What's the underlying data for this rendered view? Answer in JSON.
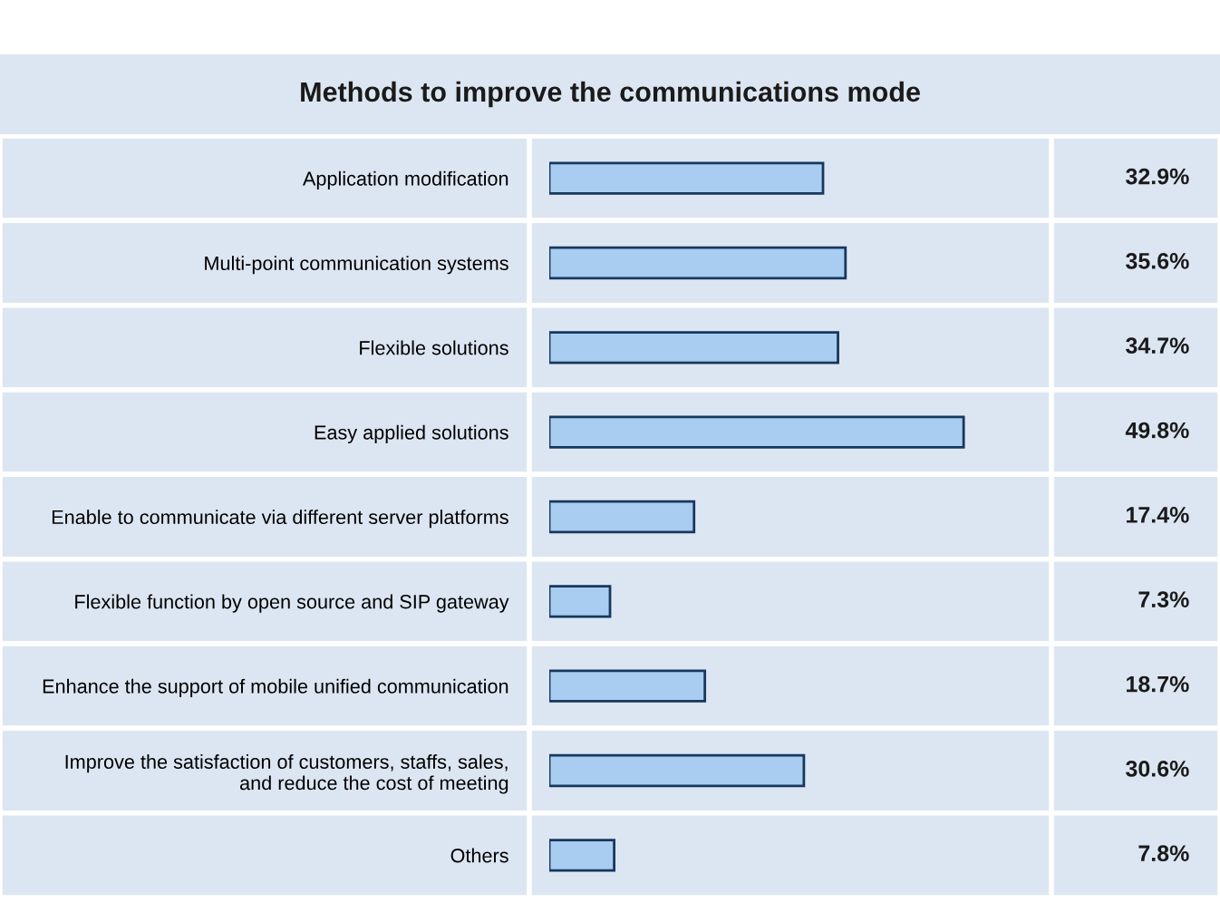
{
  "chart_data": {
    "type": "bar",
    "orientation": "horizontal",
    "title": "Methods to improve the communications mode",
    "categories": [
      "Application modification",
      "Multi-point communication systems",
      "Flexible solutions",
      "Easy applied solutions",
      "Enable to communicate via different server platforms",
      "Flexible function by open source and SIP gateway",
      "Enhance the support of mobile unified communication",
      "Improve the satisfaction of customers, staffs, sales,\nand reduce the cost of meeting",
      "Others"
    ],
    "values": [
      32.9,
      35.6,
      34.7,
      49.8,
      17.4,
      7.3,
      18.7,
      30.6,
      7.8
    ],
    "value_labels": [
      "32.9%",
      "35.6%",
      "34.7%",
      "49.8%",
      "17.4%",
      "7.3%",
      "18.7%",
      "30.6%",
      "7.8%"
    ],
    "color": "#a9cdf0",
    "grid": false,
    "legend": false
  }
}
